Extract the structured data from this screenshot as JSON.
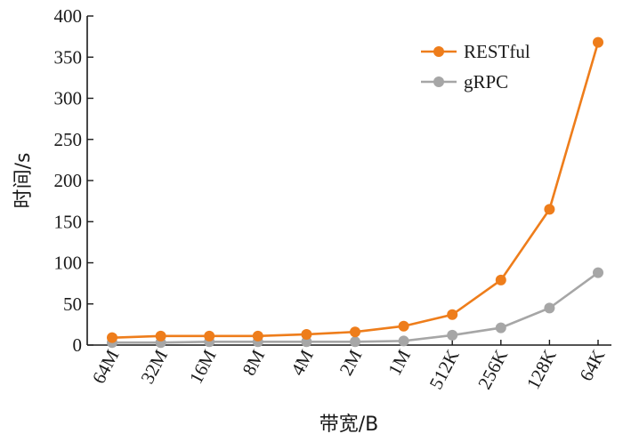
{
  "chart_data": {
    "type": "line",
    "categories": [
      "64M",
      "32M",
      "16M",
      "8M",
      "4M",
      "2M",
      "1M",
      "512K",
      "256K",
      "128K",
      "64K"
    ],
    "series": [
      {
        "name": "RESTful",
        "color": "#ee7d1b",
        "values": [
          9,
          11,
          11,
          11,
          13,
          16,
          23,
          37,
          79,
          165,
          368
        ]
      },
      {
        "name": "gRPC",
        "color": "#a6a6a6",
        "values": [
          3,
          3,
          4,
          4,
          4,
          4,
          5,
          12,
          21,
          45,
          88
        ]
      }
    ],
    "xlabel": "带宽/B",
    "ylabel": "时间/s",
    "ylim": [
      0,
      400
    ],
    "yticks": [
      0,
      50,
      100,
      150,
      200,
      250,
      300,
      350,
      400
    ],
    "legend": "top-right",
    "grid": false
  }
}
